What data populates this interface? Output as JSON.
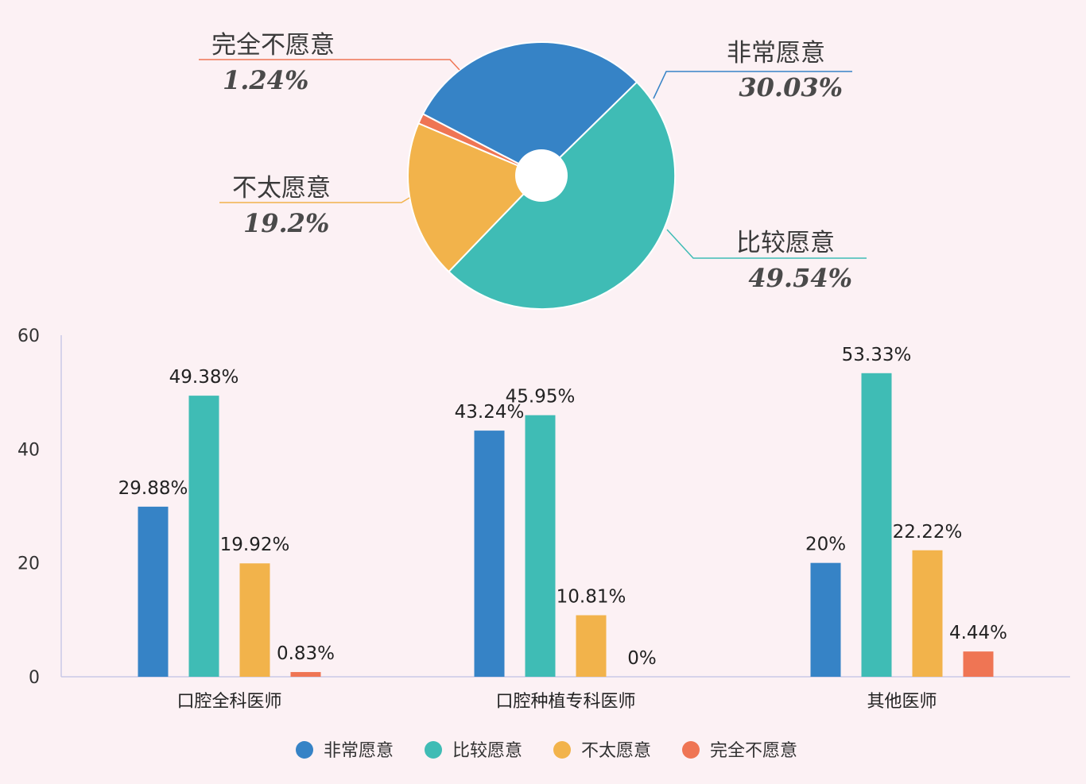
{
  "colors": {
    "very_willing": "#3683c6",
    "fairly_willing": "#3fbcb5",
    "not_very_willing": "#f2b34b",
    "completely_unwilling": "#ef7554",
    "background": "#fcf1f4"
  },
  "chart_data": [
    {
      "type": "pie",
      "variant": "donut",
      "slices": [
        {
          "name": "非常愿意",
          "value": 30.03,
          "label": "30.03%"
        },
        {
          "name": "比较愿意",
          "value": 49.54,
          "label": "49.54%"
        },
        {
          "name": "不太愿意",
          "value": 19.2,
          "label": "19.2%"
        },
        {
          "name": "完全不愿意",
          "value": 1.24,
          "label": "1.24%"
        }
      ]
    },
    {
      "type": "bar",
      "categories": [
        "口腔全科医师",
        "口腔种植专科医师",
        "其他医师"
      ],
      "ylim": [
        0,
        60
      ],
      "yticks": [
        "0",
        "20",
        "40",
        "60"
      ],
      "grid": false,
      "legend_position": "bottom",
      "series": [
        {
          "name": "非常愿意",
          "values": [
            29.88,
            43.24,
            20
          ],
          "labels": [
            "29.88%",
            "43.24%",
            "20%"
          ]
        },
        {
          "name": "比较愿意",
          "values": [
            49.38,
            45.95,
            53.33
          ],
          "labels": [
            "49.38%",
            "45.95%",
            "53.33%"
          ]
        },
        {
          "name": "不太愿意",
          "values": [
            19.92,
            10.81,
            22.22
          ],
          "labels": [
            "19.92%",
            "10.81%",
            "22.22%"
          ]
        },
        {
          "name": "完全不愿意",
          "values": [
            0.83,
            0,
            4.44
          ],
          "labels": [
            "0.83%",
            "0%",
            "4.44%"
          ]
        }
      ]
    }
  ]
}
